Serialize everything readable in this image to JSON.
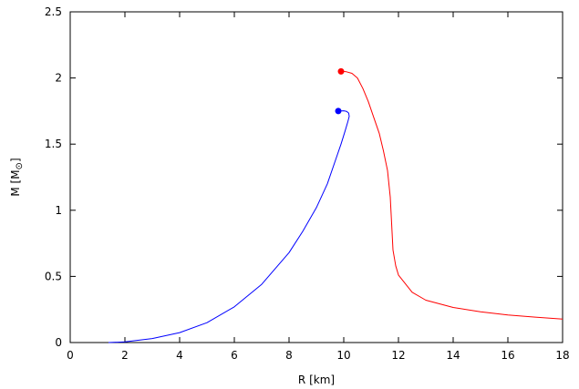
{
  "chart_data": {
    "type": "line",
    "xlabel": "R [km]",
    "ylabel_main": "M [M",
    "ylabel_sub": "⊙",
    "ylabel_end": "]",
    "xlim": [
      0,
      18
    ],
    "ylim": [
      0,
      2.5
    ],
    "x_ticks": [
      0,
      2,
      4,
      6,
      8,
      10,
      12,
      14,
      16,
      18
    ],
    "x_tick_labels": [
      "0",
      "2",
      "4",
      "6",
      "8",
      "10",
      "12",
      "14",
      "16",
      "18"
    ],
    "y_ticks": [
      0,
      0.5,
      1,
      1.5,
      2,
      2.5
    ],
    "y_tick_labels": [
      "0",
      "0.5",
      "1",
      "1.5",
      "2",
      "2.5"
    ],
    "grid": false,
    "series": [
      {
        "color": "#0000ff",
        "points": [
          [
            1.4,
            0.0
          ],
          [
            2.0,
            0.005
          ],
          [
            3.0,
            0.03
          ],
          [
            4.0,
            0.075
          ],
          [
            5.0,
            0.15
          ],
          [
            6.0,
            0.27
          ],
          [
            7.0,
            0.44
          ],
          [
            8.0,
            0.68
          ],
          [
            8.5,
            0.84
          ],
          [
            9.0,
            1.02
          ],
          [
            9.4,
            1.2
          ],
          [
            9.7,
            1.38
          ],
          [
            9.9,
            1.5
          ],
          [
            10.05,
            1.6
          ],
          [
            10.15,
            1.67
          ],
          [
            10.2,
            1.71
          ],
          [
            10.18,
            1.735
          ],
          [
            10.1,
            1.748
          ],
          [
            10.0,
            1.752
          ],
          [
            9.9,
            1.751
          ],
          [
            9.8,
            1.749
          ]
        ],
        "marker": [
          9.8,
          1.75
        ]
      },
      {
        "color": "#ff0000",
        "points": [
          [
            9.9,
            2.05
          ],
          [
            10.1,
            2.047
          ],
          [
            10.3,
            2.035
          ],
          [
            10.5,
            2.0
          ],
          [
            10.7,
            1.92
          ],
          [
            10.9,
            1.82
          ],
          [
            11.1,
            1.7
          ],
          [
            11.3,
            1.58
          ],
          [
            11.45,
            1.45
          ],
          [
            11.6,
            1.3
          ],
          [
            11.7,
            1.1
          ],
          [
            11.75,
            0.9
          ],
          [
            11.8,
            0.7
          ],
          [
            11.9,
            0.58
          ],
          [
            12.0,
            0.51
          ],
          [
            12.5,
            0.38
          ],
          [
            13.0,
            0.32
          ],
          [
            14.0,
            0.265
          ],
          [
            15.0,
            0.232
          ],
          [
            16.0,
            0.208
          ],
          [
            17.0,
            0.192
          ],
          [
            18.0,
            0.178
          ]
        ],
        "marker": [
          9.9,
          2.05
        ]
      }
    ]
  }
}
